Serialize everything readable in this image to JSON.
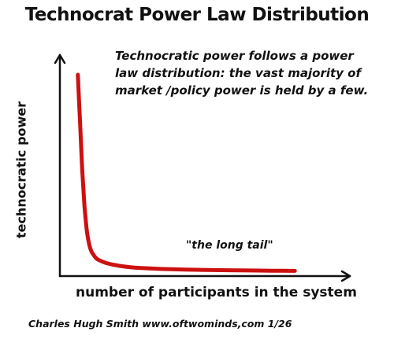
{
  "chart_data": {
    "type": "line",
    "title": "Technocrat Power Law Distribution",
    "xlabel": "number of participants in the system",
    "ylabel": "technocratic power",
    "annotation_lines": [
      "Technocratic power follows a power",
      "law distribution: the vast majority of",
      "market /policy power is held by a few."
    ],
    "curve_label": "\"the long tail\"",
    "x_ticks": false,
    "y_ticks": false,
    "grid": false,
    "series": [
      {
        "color": "#cc1111",
        "x": [
          1,
          2,
          3,
          4,
          5,
          6,
          7,
          8,
          9,
          10,
          12,
          14,
          17,
          20,
          25,
          30,
          40,
          50,
          60,
          70,
          80,
          90,
          100
        ],
        "y": [
          100,
          76,
          52,
          34,
          22,
          15,
          11,
          9,
          7.5,
          6.5,
          5.4,
          4.6,
          3.8,
          3.2,
          2.5,
          2.1,
          1.6,
          1.3,
          1.1,
          0.95,
          0.82,
          0.72,
          0.65
        ]
      }
    ],
    "xlim": [
      0,
      115
    ],
    "ylim": [
      0,
      112
    ]
  },
  "footer": {
    "credit": "Charles Hugh Smith   www.oftwominds,com  1/26"
  },
  "colors": {
    "curve": "#cc1111",
    "axes": "#111111",
    "text": "#111111"
  }
}
